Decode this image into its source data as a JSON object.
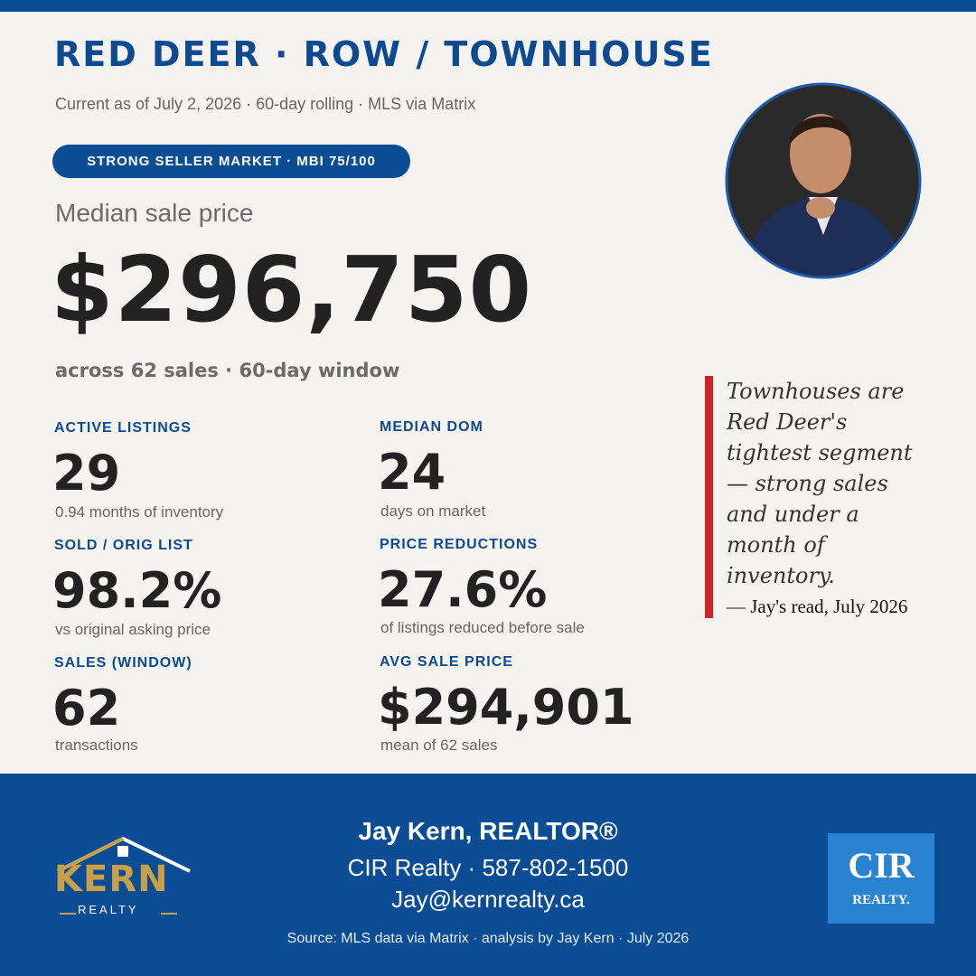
{
  "header": {
    "title": "RED DEER · ROW / TOWNHOUSE",
    "subtitle": "Current as of July 2, 2026 · 60-day rolling · MLS via Matrix",
    "badge": "STRONG SELLER MARKET · MBI 75/100"
  },
  "headline": {
    "label": "Median sale price",
    "value": "$296,750",
    "note": "across 62 sales · 60-day window"
  },
  "stats": [
    {
      "label": "ACTIVE LISTINGS",
      "value": "29",
      "note": "0.94 months of inventory"
    },
    {
      "label": "MEDIAN DOM",
      "value": "24",
      "note": "days on market"
    },
    {
      "label": "SOLD / ORIG LIST",
      "value": "98.2%",
      "note": "vs original asking price"
    },
    {
      "label": "PRICE REDUCTIONS",
      "value": "27.6%",
      "note": "of listings reduced before sale"
    },
    {
      "label": "SALES (WINDOW)",
      "value": "62",
      "note": "transactions"
    },
    {
      "label": "AVG SALE PRICE",
      "value": "$294,901",
      "note": "mean of 62 sales"
    }
  ],
  "quote": {
    "text": "Townhouses are Red Deer's tightest segment — strong sales and under a month of inventory.",
    "attribution": "— Jay's read, July 2026"
  },
  "footer": {
    "name": "Jay Kern, REALTOR®",
    "company_phone": "CIR Realty · 587-802-1500",
    "email": "Jay@kernrealty.ca",
    "source": "Source: MLS data via Matrix · analysis by Jay Kern · July 2026",
    "logo_left": {
      "name": "KERN",
      "tagline": "REALTY"
    },
    "logo_right": {
      "name": "CIR",
      "tagline": "REALTY."
    }
  }
}
